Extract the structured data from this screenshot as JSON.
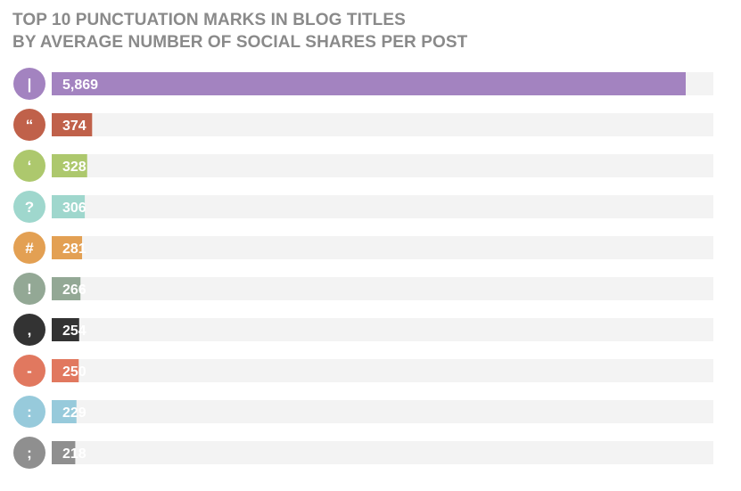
{
  "chart_data": {
    "type": "bar",
    "orientation": "horizontal",
    "title_lines": [
      "TOP 10 PUNCTUATION MARKS IN BLOG TITLES",
      "BY AVERAGE NUMBER OF SOCIAL SHARES PER POST"
    ],
    "categories": [
      "|",
      "“",
      "‘",
      "?",
      "#",
      "!",
      ",",
      "-",
      ":",
      ";"
    ],
    "values": [
      5869,
      374,
      328,
      306,
      281,
      266,
      254,
      250,
      229,
      218
    ],
    "value_labels": [
      "5,869",
      "374",
      "328",
      "306",
      "281",
      "266",
      "254",
      "250",
      "229",
      "218"
    ],
    "colors": [
      "#a383c0",
      "#c0614a",
      "#adc86d",
      "#9fd7cd",
      "#e3a053",
      "#93a895",
      "#333333",
      "#e1785f",
      "#97cadb",
      "#8f8f8f"
    ],
    "track_color": "#f3f3f3",
    "xlim": [
      0,
      5869
    ],
    "grid": false,
    "legend": "none"
  }
}
